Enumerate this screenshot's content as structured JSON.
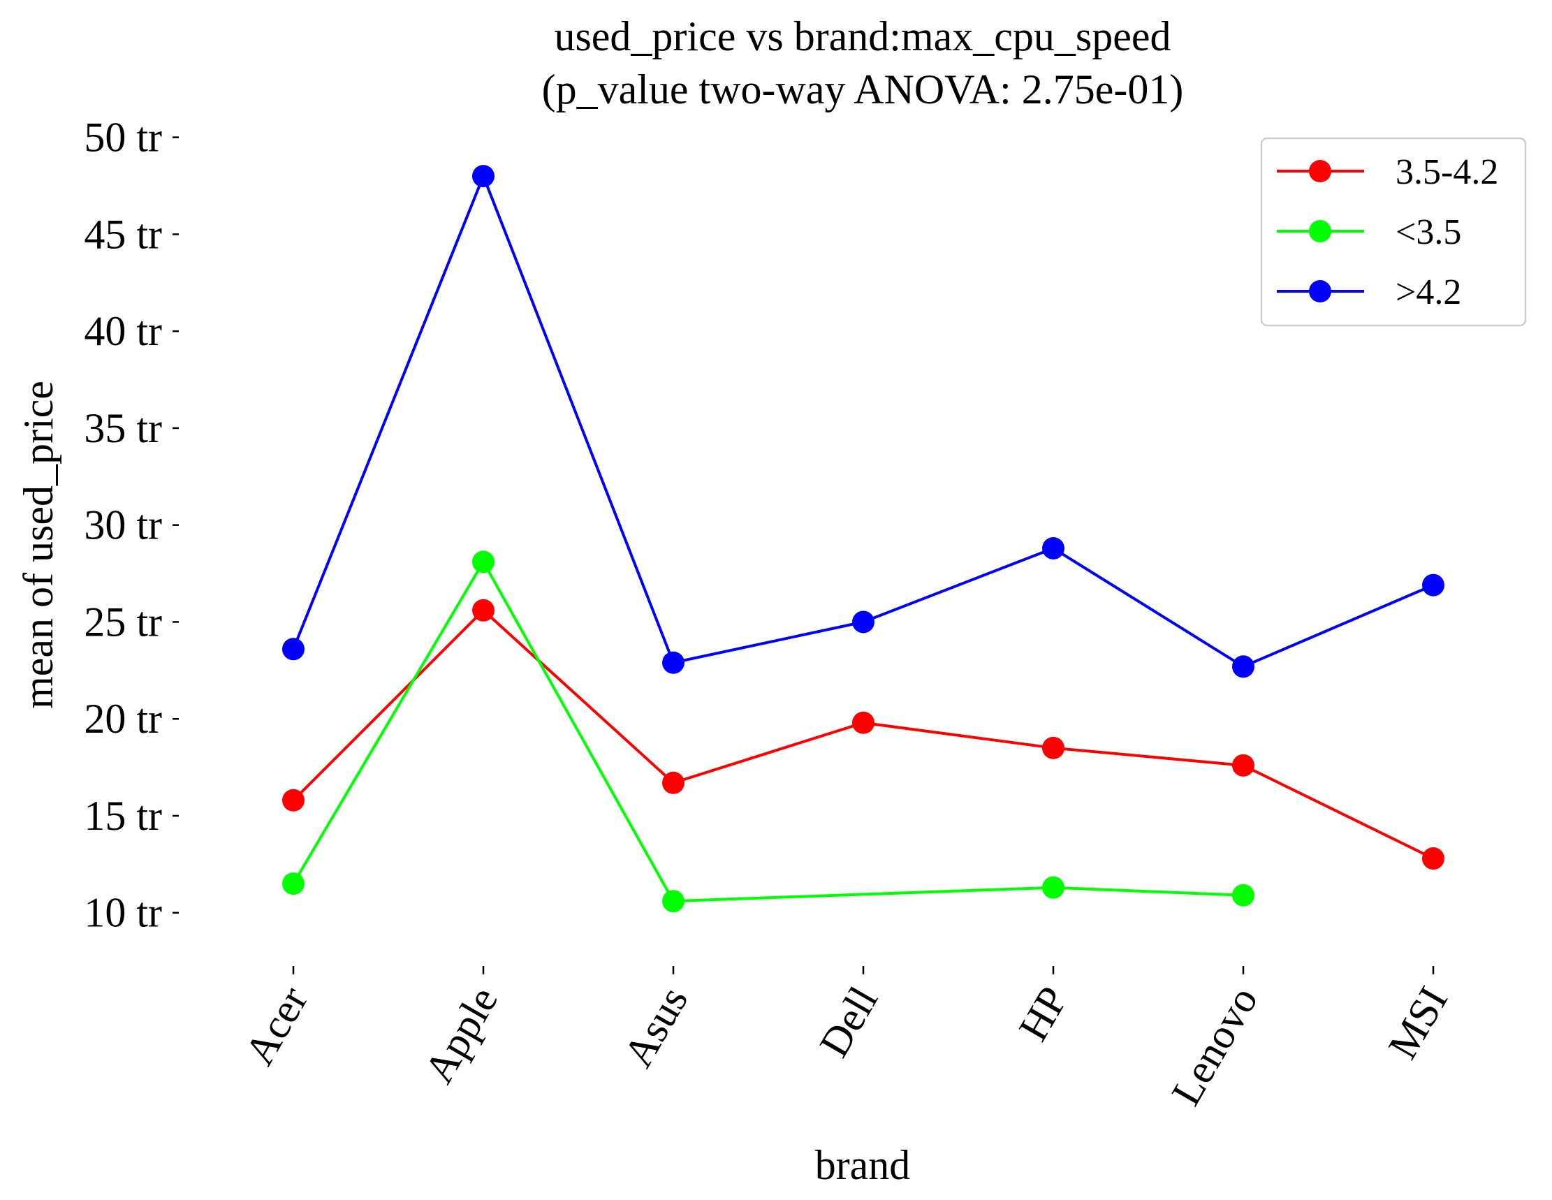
{
  "chart_data": {
    "type": "line",
    "title": [
      "used_price vs brand:max_cpu_speed",
      "(p_value two-way ANOVA: 2.75e-01)"
    ],
    "xlabel": "brand",
    "ylabel": "mean of used_price",
    "categories": [
      "Acer",
      "Apple",
      "Asus",
      "Dell",
      "HP",
      "Lenovo",
      "MSI"
    ],
    "y_ticks": [
      10,
      15,
      20,
      25,
      30,
      35,
      40,
      45,
      50
    ],
    "y_tick_suffix": " tr",
    "ylim": [
      7.0,
      51.5
    ],
    "legend_position": "top-right",
    "series": [
      {
        "name": "3.5-4.2",
        "color": "#ff0000",
        "values": [
          15.8,
          25.6,
          16.7,
          19.8,
          18.5,
          17.6,
          12.8
        ]
      },
      {
        "name": "<3.5",
        "color": "#00ff00",
        "values": [
          11.5,
          28.1,
          10.6,
          null,
          11.3,
          10.9,
          null
        ]
      },
      {
        "name": ">4.2",
        "color": "#0000ff",
        "values": [
          23.6,
          48.0,
          22.9,
          25.0,
          28.8,
          22.7,
          26.9
        ]
      }
    ]
  }
}
